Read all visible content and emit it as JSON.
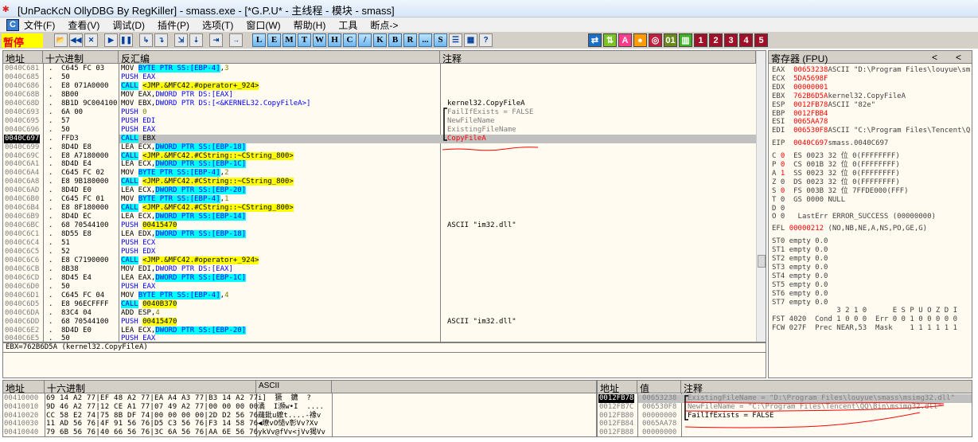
{
  "window": {
    "title": "[UnPacKcN OllyDBG By RegKiller] - smass.exe - [*G.P.U* - 主线程 - 模块 - smass]"
  },
  "menu": {
    "logo": "C",
    "items": [
      "文件(F)",
      "查看(V)",
      "调试(D)",
      "插件(P)",
      "选项(T)",
      "窗口(W)",
      "帮助(H)",
      "工具",
      "断点->"
    ]
  },
  "toolbar": {
    "status": "暂停",
    "debug_buttons": [
      "open",
      "restart",
      "close",
      "run",
      "pause",
      "step-into",
      "step-over",
      "trace-into",
      "trace-over",
      "execute-till-return",
      "go-to"
    ],
    "window_buttons": [
      "L",
      "E",
      "M",
      "T",
      "W",
      "H",
      "C",
      "/",
      "K",
      "B",
      "R",
      "...",
      "S"
    ],
    "right_buttons": [
      {
        "label": "⇄",
        "color": "#1c6fc4"
      },
      {
        "label": "⇅",
        "color": "#7cc324"
      },
      {
        "label": "A",
        "color": "#ff3c8c"
      },
      {
        "label": "●",
        "color": "#ff9a00"
      },
      {
        "label": "◎",
        "color": "#c02040"
      },
      {
        "label": "01",
        "color": "#6a8a1e"
      },
      {
        "label": "▥",
        "color": "#3cb424"
      },
      {
        "label": "1",
        "color": "#a01028"
      },
      {
        "label": "2",
        "color": "#a01028"
      },
      {
        "label": "3",
        "color": "#a01028"
      },
      {
        "label": "4",
        "color": "#a01028"
      },
      {
        "label": "5",
        "color": "#a01028"
      }
    ]
  },
  "cpu": {
    "headers": [
      "地址",
      "十六进制",
      "反汇编",
      "注释"
    ],
    "rows": [
      {
        "addr": "0040C681",
        "hex": "C645 FC 03",
        "dis": [
          [
            "op",
            "MOV "
          ],
          [
            "mem",
            "BYTE PTR SS:[EBP-4]"
          ],
          [
            "op",
            ","
          ],
          [
            "num",
            "3"
          ]
        ],
        "cmt": ""
      },
      {
        "addr": "0040C685",
        "hex": "50",
        "dis": [
          [
            "push",
            "PUSH EAX"
          ]
        ],
        "cmt": ""
      },
      {
        "addr": "0040C686",
        "hex": "E8 071A0000",
        "dis": [
          [
            "call",
            "CALL"
          ],
          [
            "op",
            " "
          ],
          [
            "tgt",
            "<JMP.&MFC42.#operator+_924>"
          ]
        ],
        "cmt": ""
      },
      {
        "addr": "0040C68B",
        "hex": "8B00",
        "dis": [
          [
            "op",
            "MOV EAX,"
          ],
          [
            "ds",
            "DWORD PTR DS:[EAX]"
          ]
        ],
        "cmt": ""
      },
      {
        "addr": "0040C68D",
        "hex": "8B1D 9C004100",
        "dis": [
          [
            "op",
            "MOV EBX,"
          ],
          [
            "ds",
            "DWORD PTR DS:[<&KERNEL32.CopyFileA>]"
          ]
        ],
        "cmt": "kernel32.CopyFileA"
      },
      {
        "addr": "0040C693",
        "hex": "6A 00",
        "dis": [
          [
            "push",
            "PUSH "
          ],
          [
            "num",
            "0"
          ]
        ],
        "cmt": "FailIfExists = FALSE"
      },
      {
        "addr": "0040C695",
        "hex": "57",
        "dis": [
          [
            "push",
            "PUSH EDI"
          ]
        ],
        "cmt": "NewFileName"
      },
      {
        "addr": "0040C696",
        "hex": "50",
        "dis": [
          [
            "push",
            "PUSH EAX"
          ]
        ],
        "cmt": "ExistingFileName"
      },
      {
        "addr": "0040C697",
        "hex": "FFD3",
        "dis": [
          [
            "call",
            "CALL"
          ],
          [
            "op",
            " EBX"
          ]
        ],
        "cmt": "CopyFileA"
      },
      {
        "addr": "0040C699",
        "hex": "8D4D E8",
        "dis": [
          [
            "op",
            "LEA ECX,"
          ],
          [
            "mem",
            "DWORD PTR SS:[EBP-18]"
          ]
        ],
        "cmt": ""
      },
      {
        "addr": "0040C69C",
        "hex": "E8 A7180000",
        "dis": [
          [
            "call",
            "CALL"
          ],
          [
            "op",
            " "
          ],
          [
            "tgt",
            "<JMP.&MFC42.#CString::~CString_800>"
          ]
        ],
        "cmt": ""
      },
      {
        "addr": "0040C6A1",
        "hex": "8D4D E4",
        "dis": [
          [
            "op",
            "LEA ECX,"
          ],
          [
            "mem",
            "DWORD PTR SS:[EBP-1C]"
          ]
        ],
        "cmt": ""
      },
      {
        "addr": "0040C6A4",
        "hex": "C645 FC 02",
        "dis": [
          [
            "op",
            "MOV "
          ],
          [
            "mem",
            "BYTE PTR SS:[EBP-4]"
          ],
          [
            "op",
            ","
          ],
          [
            "num",
            "2"
          ]
        ],
        "cmt": ""
      },
      {
        "addr": "0040C6A8",
        "hex": "E8 9B180000",
        "dis": [
          [
            "call",
            "CALL"
          ],
          [
            "op",
            " "
          ],
          [
            "tgt",
            "<JMP.&MFC42.#CString::~CString_800>"
          ]
        ],
        "cmt": ""
      },
      {
        "addr": "0040C6AD",
        "hex": "8D4D E0",
        "dis": [
          [
            "op",
            "LEA ECX,"
          ],
          [
            "mem",
            "DWORD PTR SS:[EBP-20]"
          ]
        ],
        "cmt": ""
      },
      {
        "addr": "0040C6B0",
        "hex": "C645 FC 01",
        "dis": [
          [
            "op",
            "MOV "
          ],
          [
            "mem",
            "BYTE PTR SS:[EBP-4]"
          ],
          [
            "op",
            ","
          ],
          [
            "num",
            "1"
          ]
        ],
        "cmt": ""
      },
      {
        "addr": "0040C6B4",
        "hex": "E8 8F180000",
        "dis": [
          [
            "call",
            "CALL"
          ],
          [
            "op",
            " "
          ],
          [
            "tgt",
            "<JMP.&MFC42.#CString::~CString_800>"
          ]
        ],
        "cmt": ""
      },
      {
        "addr": "0040C6B9",
        "hex": "8D4D EC",
        "dis": [
          [
            "op",
            "LEA ECX,"
          ],
          [
            "mem",
            "DWORD PTR SS:[EBP-14]"
          ]
        ],
        "cmt": ""
      },
      {
        "addr": "0040C6BC",
        "hex": "68 70544100",
        "dis": [
          [
            "push",
            "PUSH "
          ],
          [
            "tgt",
            "00415470"
          ]
        ],
        "cmt": "ASCII \"im32.dll\""
      },
      {
        "addr": "0040C6C1",
        "hex": "8D55 E8",
        "dis": [
          [
            "op",
            "LEA EDX,"
          ],
          [
            "mem",
            "DWORD PTR SS:[EBP-18]"
          ]
        ],
        "cmt": ""
      },
      {
        "addr": "0040C6C4",
        "hex": "51",
        "dis": [
          [
            "push",
            "PUSH ECX"
          ]
        ],
        "cmt": ""
      },
      {
        "addr": "0040C6C5",
        "hex": "52",
        "dis": [
          [
            "push",
            "PUSH EDX"
          ]
        ],
        "cmt": ""
      },
      {
        "addr": "0040C6C6",
        "hex": "E8 C7190000",
        "dis": [
          [
            "call",
            "CALL"
          ],
          [
            "op",
            " "
          ],
          [
            "tgt",
            "<JMP.&MFC42.#operator+_924>"
          ]
        ],
        "cmt": ""
      },
      {
        "addr": "0040C6CB",
        "hex": "8B38",
        "dis": [
          [
            "op",
            "MOV EDI,"
          ],
          [
            "ds",
            "DWORD PTR DS:[EAX]"
          ]
        ],
        "cmt": ""
      },
      {
        "addr": "0040C6CD",
        "hex": "8D45 E4",
        "dis": [
          [
            "op",
            "LEA EAX,"
          ],
          [
            "mem",
            "DWORD PTR SS:[EBP-1C]"
          ]
        ],
        "cmt": ""
      },
      {
        "addr": "0040C6D0",
        "hex": "50",
        "dis": [
          [
            "push",
            "PUSH EAX"
          ]
        ],
        "cmt": ""
      },
      {
        "addr": "0040C6D1",
        "hex": "C645 FC 04",
        "dis": [
          [
            "op",
            "MOV "
          ],
          [
            "mem",
            "BYTE PTR SS:[EBP-4]"
          ],
          [
            "op",
            ","
          ],
          [
            "num",
            "4"
          ]
        ],
        "cmt": ""
      },
      {
        "addr": "0040C6D5",
        "hex": "E8 96ECFFFF",
        "dis": [
          [
            "call",
            "CALL"
          ],
          [
            "op",
            " "
          ],
          [
            "tgt",
            "0040B370"
          ]
        ],
        "cmt": ""
      },
      {
        "addr": "0040C6DA",
        "hex": "83C4 04",
        "dis": [
          [
            "op",
            "ADD ESP,"
          ],
          [
            "num",
            "4"
          ]
        ],
        "cmt": ""
      },
      {
        "addr": "0040C6DD",
        "hex": "68 70544100",
        "dis": [
          [
            "push",
            "PUSH "
          ],
          [
            "tgt",
            "00415470"
          ]
        ],
        "cmt": "ASCII \"im32.dll\""
      },
      {
        "addr": "0040C6E2",
        "hex": "8D4D E0",
        "dis": [
          [
            "op",
            "LEA ECX,"
          ],
          [
            "mem",
            "DWORD PTR SS:[EBP-20]"
          ]
        ],
        "cmt": ""
      },
      {
        "addr": "0040C6E5",
        "hex": "50",
        "dis": [
          [
            "push",
            "PUSH EAX"
          ]
        ],
        "cmt": ""
      }
    ],
    "selected_addr": "0040C697",
    "info": "EBX=762B6D5A (kernel32.CopyFileA)"
  },
  "registers": {
    "title": "寄存器 (FPU)",
    "nav": [
      "<",
      "<"
    ],
    "gpr": [
      [
        "EAX",
        "00653238",
        "ASCII \"D:\\Program Files\\louyue\\sm"
      ],
      [
        "ECX",
        "5DA5698F",
        ""
      ],
      [
        "EDX",
        "00000001",
        ""
      ],
      [
        "EBX",
        "762B6D5A",
        "kernel32.CopyFileA"
      ],
      [
        "ESP",
        "0012FB78",
        "ASCII \"82e\""
      ],
      [
        "EBP",
        "0012FBB4",
        ""
      ],
      [
        "ESI",
        "0065AA78",
        ""
      ],
      [
        "EDI",
        "006530F8",
        "ASCII \"C:\\Program Files\\Tencent\\Q"
      ]
    ],
    "eip": [
      "EIP",
      "0040C697",
      "smass.0040C697"
    ],
    "flags": [
      [
        "C",
        "0",
        "ES 0023 32 位 0(FFFFFFFF)"
      ],
      [
        "P",
        "0",
        "CS 001B 32 位 0(FFFFFFFF)"
      ],
      [
        "A",
        "1",
        "SS 0023 32 位 0(FFFFFFFF)"
      ],
      [
        "Z",
        "0",
        "DS 0023 32 位 0(FFFFFFFF)"
      ],
      [
        "S",
        "0",
        "FS 003B 32 位 7FFDE000(FFF)"
      ],
      [
        "T",
        "0",
        "GS 0000 NULL"
      ],
      [
        "D",
        "0",
        ""
      ],
      [
        "O",
        "0",
        " LastErr ERROR_SUCCESS (00000000)"
      ]
    ],
    "efl": [
      "EFL",
      "00000212",
      "(NO,NB,NE,A,NS,PO,GE,G)"
    ],
    "fpu": [
      "ST0 empty 0.0",
      "ST1 empty 0.0",
      "ST2 empty 0.0",
      "ST3 empty 0.0",
      "ST4 empty 0.0",
      "ST5 empty 0.0",
      "ST6 empty 0.0",
      "ST7 empty 0.0"
    ],
    "fst_hdr": "               3 2 1 0      E S P U O Z D I",
    "fst": "FST 4020  Cond 1 0 0 0  Err 0 0 1 0 0 0 0 0",
    "fcw": "FCW 027F  Prec NEAR,53  Mask    1 1 1 1 1 1"
  },
  "dump": {
    "headers": [
      "地址",
      "十六进制",
      "ASCII"
    ],
    "rows": [
      [
        "00410000",
        "69 14 A2 77|EF 48 A2 77|EA A4 A3 77|B3 14 A2 77",
        "i]  獗  鑣  ?"
      ],
      [
        "00410010",
        "9D 46 A2 77|12 CE A1 77|07 49 A2 77|00 00 00 00",
        "潏  I瀕w•I  ...."
      ],
      [
        "00410020",
        "CC 58 E2 74|75 8B DF 74|00 00 00 00|2D D2 56 76",
        "蘕鈚u嬤t....-襐v"
      ],
      [
        "00410030",
        "11 AD 56 76|4F 91 56 76|D5 C3 56 76|F3 14 58 76",
        "◀璙vO慥v彰Vv?Xv"
      ],
      [
        "00410040",
        "79 6B 56 76|40 66 56 76|3C 6A 56 76|AA 6E 56 76",
        "ykVv@fVv<jVv猲Vv"
      ]
    ]
  },
  "stack": {
    "headers": [
      "地址",
      "值",
      "注释"
    ],
    "rows": [
      [
        "0012FB78",
        "00653238",
        "ExistingFileName = \"D:\\Program Files\\louyue\\smass\\msimg32.dll\""
      ],
      [
        "0012FB7C",
        "006530F8",
        "NewFileName = \"C:\\Program Files\\Tencent\\QQ\\Bin\\msimg32.dll\""
      ],
      [
        "0012FB80",
        "00000000",
        "FailIfExists = FALSE"
      ],
      [
        "0012FB84",
        "0065AA78",
        ""
      ],
      [
        "0012FB88",
        "00000000",
        ""
      ]
    ]
  }
}
